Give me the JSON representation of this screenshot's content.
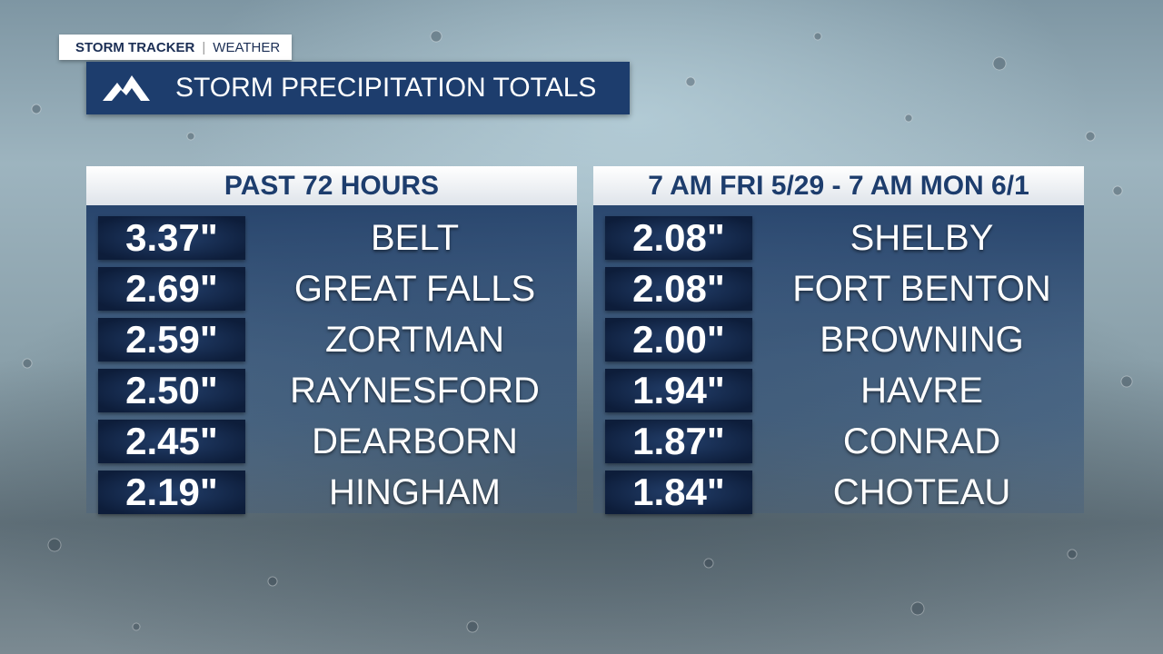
{
  "header": {
    "brand": "STORM TRACKER",
    "section": "WEATHER",
    "title": "STORM PRECIPITATION TOTALS"
  },
  "panels": [
    {
      "heading": "PAST 72 HOURS",
      "rows": [
        {
          "amount": "3.37\"",
          "place": "BELT"
        },
        {
          "amount": "2.69\"",
          "place": "GREAT FALLS"
        },
        {
          "amount": "2.59\"",
          "place": "ZORTMAN"
        },
        {
          "amount": "2.50\"",
          "place": "RAYNESFORD"
        },
        {
          "amount": "2.45\"",
          "place": "DEARBORN"
        },
        {
          "amount": "2.19\"",
          "place": "HINGHAM"
        }
      ]
    },
    {
      "heading": "7 AM FRI 5/29 - 7 AM MON 6/1",
      "rows": [
        {
          "amount": "2.08\"",
          "place": "SHELBY"
        },
        {
          "amount": "2.08\"",
          "place": "FORT BENTON"
        },
        {
          "amount": "2.00\"",
          "place": "BROWNING"
        },
        {
          "amount": "1.94\"",
          "place": "HAVRE"
        },
        {
          "amount": "1.87\"",
          "place": "CONRAD"
        },
        {
          "amount": "1.84\"",
          "place": "CHOTEAU"
        }
      ]
    }
  ]
}
